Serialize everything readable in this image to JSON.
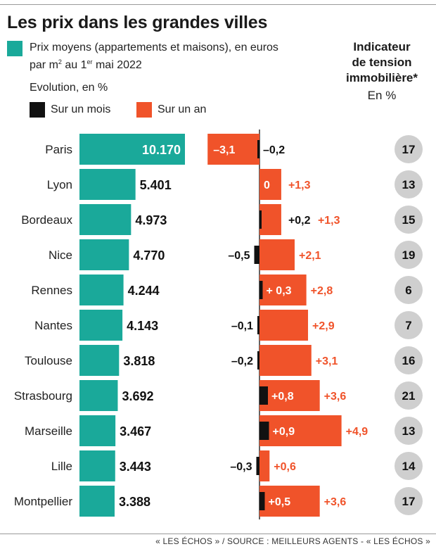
{
  "title": "Les prix dans les grandes villes",
  "legend": {
    "price_label_line1": "Prix moyens (appartements et maisons), en euros",
    "price_label_line2_a": "par m",
    "price_label_sup1": "2",
    "price_label_line2_b": " au 1",
    "price_label_sup2": "er",
    "price_label_line2_c": " mai 2022",
    "evolution_label": "Evolution, en %",
    "month_label": "Sur un mois",
    "year_label": "Sur un an",
    "colors": {
      "price": "#1aa99a",
      "month": "#111111",
      "year": "#f0532a",
      "circle": "#cfcfcf"
    }
  },
  "indicator": {
    "line1": "Indicateur",
    "line2": "de tension",
    "line3": "immobilière*",
    "unit": "En %"
  },
  "chart_data": {
    "type": "bar",
    "categories": [
      "Paris",
      "Lyon",
      "Bordeaux",
      "Nice",
      "Rennes",
      "Nantes",
      "Toulouse",
      "Strasbourg",
      "Marseille",
      "Lille",
      "Montpellier"
    ],
    "series": [
      {
        "name": "Prix moyens (appartements et maisons), en euros par m2 au 1er mai 2022",
        "values": [
          10170,
          5401,
          4973,
          4770,
          4244,
          4143,
          3818,
          3692,
          3467,
          3443,
          3388
        ],
        "labels": [
          "10.170",
          "5.401",
          "4.973",
          "4.770",
          "4.244",
          "4.143",
          "3.818",
          "3.692",
          "3.467",
          "3.443",
          "3.388"
        ]
      },
      {
        "name": "Sur un mois",
        "values": [
          -0.2,
          0,
          0.2,
          -0.5,
          0.3,
          -0.1,
          -0.2,
          0.8,
          0.9,
          -0.3,
          0.5
        ],
        "labels": [
          "–0,2",
          "",
          "+0,2",
          "–0,5",
          "+ 0,3",
          "–0,1",
          "–0,2",
          "+0,8",
          "+0,9",
          "–0,3",
          "+0,5"
        ]
      },
      {
        "name": "Sur un an",
        "values": [
          -3.1,
          1.3,
          1.3,
          2.1,
          2.8,
          2.9,
          3.1,
          3.6,
          4.9,
          0.6,
          3.6
        ],
        "labels": [
          "–3,1",
          "+1,3",
          "+1,3",
          "+2,1",
          "+2,8",
          "+2,9",
          "+3,1",
          "+3,6",
          "+4,9",
          "+0,6",
          "+3,6"
        ]
      },
      {
        "name": "Indicateur de tension immobilière",
        "values": [
          17,
          13,
          15,
          19,
          6,
          7,
          16,
          21,
          13,
          14,
          17
        ],
        "labels": [
          "17",
          "13",
          "15",
          "19",
          "6",
          "7",
          "16",
          "21",
          "13",
          "14",
          "17"
        ]
      }
    ],
    "month_zero_label": "0"
  },
  "footer": "« LES ÉCHOS » / SOURCE : MEILLEURS AGENTS - « LES ÉCHOS »"
}
